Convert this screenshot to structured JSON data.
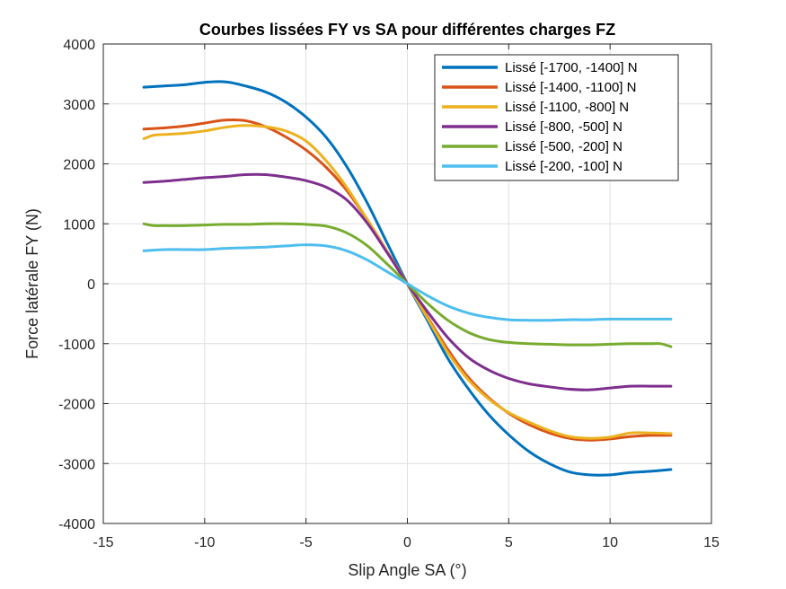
{
  "chart_data": {
    "type": "line",
    "title": "Courbes lissées FY vs SA pour différentes charges FZ",
    "xlabel": "Slip Angle SA (°)",
    "ylabel": "Force latérale FY (N)",
    "xlim": [
      -15,
      15
    ],
    "ylim": [
      -4000,
      4000
    ],
    "xticks": [
      -15,
      -10,
      -5,
      0,
      5,
      10,
      15
    ],
    "yticks": [
      -4000,
      -3000,
      -2000,
      -1000,
      0,
      1000,
      2000,
      3000,
      4000
    ],
    "grid": true,
    "legend_position": "top-right",
    "series": [
      {
        "name": "Lissé [-1700, -1400] N",
        "color": "#0072BD",
        "x": [
          -13,
          -12,
          -11,
          -10,
          -9,
          -8,
          -7,
          -6,
          -5,
          -4,
          -3,
          -2,
          -1,
          0,
          1,
          2,
          3,
          4,
          5,
          6,
          7,
          8,
          9,
          10,
          11,
          12,
          13
        ],
        "y": [
          3280,
          3300,
          3320,
          3360,
          3370,
          3300,
          3200,
          3030,
          2780,
          2440,
          1960,
          1360,
          680,
          0,
          -620,
          -1250,
          -1750,
          -2180,
          -2520,
          -2800,
          -3000,
          -3140,
          -3190,
          -3190,
          -3150,
          -3130,
          -3100
        ]
      },
      {
        "name": "Lissé [-1400, -1100] N",
        "color": "#D95319",
        "x": [
          -13,
          -12,
          -11,
          -10,
          -9,
          -8,
          -7,
          -6,
          -5,
          -4,
          -3,
          -2,
          -1,
          0,
          1,
          2,
          3,
          4,
          5,
          6,
          7,
          8,
          9,
          10,
          11,
          12,
          13
        ],
        "y": [
          2580,
          2600,
          2630,
          2680,
          2730,
          2720,
          2620,
          2450,
          2230,
          1940,
          1560,
          1080,
          540,
          0,
          -560,
          -1100,
          -1560,
          -1900,
          -2160,
          -2350,
          -2490,
          -2580,
          -2610,
          -2590,
          -2550,
          -2530,
          -2530
        ]
      },
      {
        "name": "Lissé [-1100, -800] N",
        "color": "#EDB120",
        "x": [
          -13,
          -12.5,
          -12,
          -11,
          -10,
          -9,
          -8,
          -7,
          -6,
          -5,
          -4,
          -3,
          -2,
          -1,
          0,
          1,
          2,
          3,
          4,
          5,
          6,
          7,
          8,
          9,
          10,
          11,
          12,
          13
        ],
        "y": [
          2420,
          2480,
          2490,
          2510,
          2550,
          2610,
          2640,
          2620,
          2550,
          2380,
          2050,
          1610,
          1080,
          540,
          0,
          -580,
          -1150,
          -1600,
          -1920,
          -2150,
          -2310,
          -2450,
          -2550,
          -2580,
          -2560,
          -2490,
          -2490,
          -2500
        ]
      },
      {
        "name": "Lissé [-800, -500] N",
        "color": "#7E2F8E",
        "x": [
          -13,
          -12,
          -11,
          -10,
          -9,
          -8,
          -7,
          -6,
          -5,
          -4,
          -3,
          -2,
          -1,
          0,
          1,
          2,
          3,
          4,
          5,
          6,
          7,
          8,
          9,
          10,
          11,
          12,
          13
        ],
        "y": [
          1690,
          1710,
          1740,
          1770,
          1790,
          1820,
          1820,
          1780,
          1720,
          1610,
          1400,
          1020,
          520,
          0,
          -470,
          -900,
          -1230,
          -1440,
          -1580,
          -1670,
          -1720,
          -1760,
          -1770,
          -1740,
          -1710,
          -1710,
          -1710
        ]
      },
      {
        "name": "Lissé [-500, -200] N",
        "color": "#77AC30",
        "x": [
          -13,
          -12.5,
          -12,
          -11,
          -10,
          -9,
          -8,
          -7,
          -6,
          -5,
          -4,
          -3,
          -2,
          -1,
          0,
          1,
          2,
          3,
          4,
          5,
          6,
          7,
          8,
          9,
          10,
          11,
          12,
          12.5,
          13
        ],
        "y": [
          1000,
          970,
          970,
          970,
          980,
          990,
          990,
          1000,
          1000,
          990,
          960,
          850,
          640,
          330,
          0,
          -330,
          -610,
          -810,
          -930,
          -980,
          -1000,
          -1010,
          -1020,
          -1020,
          -1010,
          -1000,
          -1000,
          -1000,
          -1050
        ]
      },
      {
        "name": "Lissé [-200, -100] N",
        "color": "#4DBEEE",
        "x": [
          -13,
          -12,
          -11,
          -10,
          -9,
          -8,
          -7,
          -6,
          -5,
          -4,
          -3,
          -2,
          -1,
          0,
          1,
          2,
          3,
          4,
          5,
          6,
          7,
          8,
          9,
          10,
          11,
          12,
          13
        ],
        "y": [
          550,
          570,
          570,
          570,
          590,
          600,
          610,
          630,
          650,
          630,
          550,
          400,
          200,
          0,
          -200,
          -370,
          -490,
          -560,
          -600,
          -610,
          -610,
          -600,
          -600,
          -590,
          -590,
          -590,
          -590
        ]
      }
    ]
  }
}
